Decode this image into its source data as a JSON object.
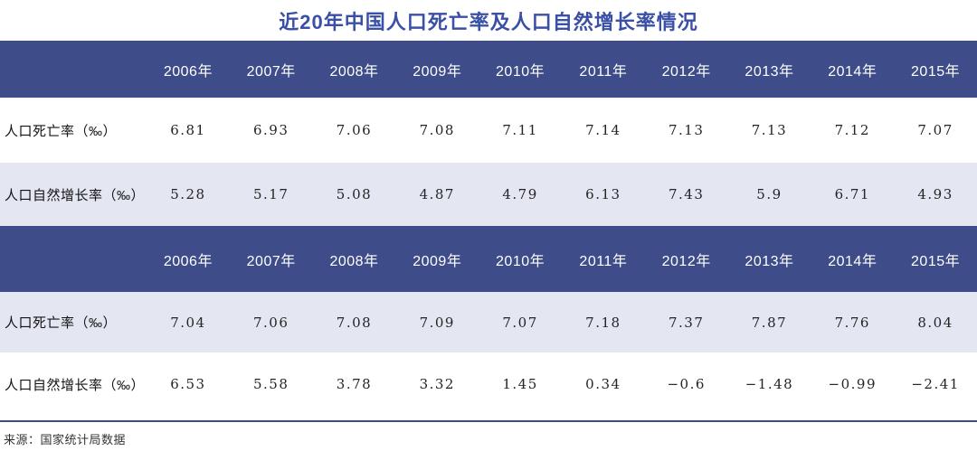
{
  "title": "近20年中国人口死亡率及人口自然增长率情况",
  "footer": {
    "source": "来源：国家统计局数据"
  },
  "colors": {
    "header_bg": "#3F4C8A",
    "alt_row_bg": "#E4E7F2",
    "title_text": "#3A50A6",
    "header_text": "#FFFFFF",
    "divider_line": "#3C4A88"
  },
  "tables": [
    {
      "years": [
        "2006年",
        "2007年",
        "2008年",
        "2009年",
        "2010年",
        "2011年",
        "2012年",
        "2013年",
        "2014年",
        "2015年"
      ],
      "rows": [
        {
          "label": "人口死亡率（‰）",
          "values": [
            "6.81",
            "6.93",
            "7.06",
            "7.08",
            "7.11",
            "7.14",
            "7.13",
            "7.13",
            "7.12",
            "7.07"
          ]
        },
        {
          "label": "人口自然增长率（‰）",
          "values": [
            "5.28",
            "5.17",
            "5.08",
            "4.87",
            "4.79",
            "6.13",
            "7.43",
            "5.9",
            "6.71",
            "4.93"
          ]
        }
      ]
    },
    {
      "years": [
        "2006年",
        "2007年",
        "2008年",
        "2009年",
        "2010年",
        "2011年",
        "2012年",
        "2013年",
        "2014年",
        "2015年"
      ],
      "rows": [
        {
          "label": "人口死亡率（‰）",
          "values": [
            "7.04",
            "7.06",
            "7.08",
            "7.09",
            "7.07",
            "7.18",
            "7.37",
            "7.87",
            "7.76",
            "8.04"
          ]
        },
        {
          "label": "人口自然增长率（‰）",
          "values": [
            "6.53",
            "5.58",
            "3.78",
            "3.32",
            "1.45",
            "0.34",
            "−0.6",
            "−1.48",
            "−0.99",
            "−2.41"
          ]
        }
      ]
    }
  ],
  "chart_data": [
    {
      "type": "table",
      "title": "近20年中国人口死亡率及人口自然增长率情况",
      "categories": [
        "2006年",
        "2007年",
        "2008年",
        "2009年",
        "2010年",
        "2011年",
        "2012年",
        "2013年",
        "2014年",
        "2015年"
      ],
      "series": [
        {
          "name": "人口死亡率（‰）",
          "values": [
            6.81,
            6.93,
            7.06,
            7.08,
            7.11,
            7.14,
            7.13,
            7.13,
            7.12,
            7.07
          ]
        },
        {
          "name": "人口自然增长率（‰）",
          "values": [
            5.28,
            5.17,
            5.08,
            4.87,
            4.79,
            6.13,
            7.43,
            5.9,
            6.71,
            4.93
          ]
        }
      ]
    },
    {
      "type": "table",
      "categories": [
        "2006年",
        "2007年",
        "2008年",
        "2009年",
        "2010年",
        "2011年",
        "2012年",
        "2013年",
        "2014年",
        "2015年"
      ],
      "series": [
        {
          "name": "人口死亡率（‰）",
          "values": [
            7.04,
            7.06,
            7.08,
            7.09,
            7.07,
            7.18,
            7.37,
            7.87,
            7.76,
            8.04
          ]
        },
        {
          "name": "人口自然增长率（‰）",
          "values": [
            6.53,
            5.58,
            3.78,
            3.32,
            1.45,
            0.34,
            -0.6,
            -1.48,
            -0.99,
            -2.41
          ]
        }
      ]
    }
  ]
}
